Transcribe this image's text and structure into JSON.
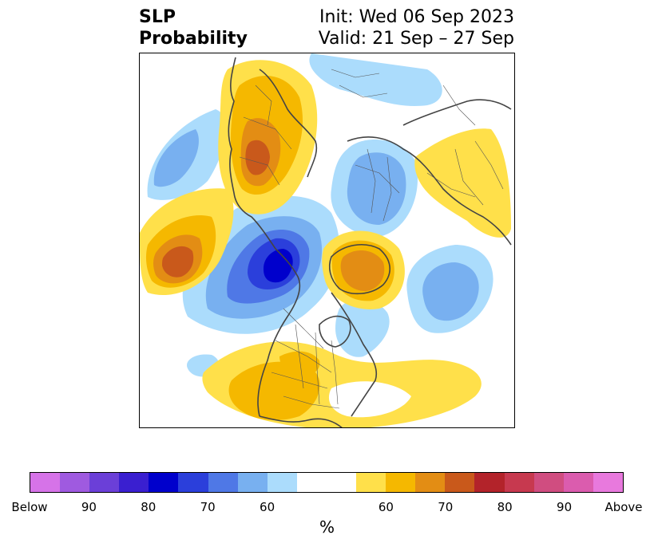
{
  "title": {
    "left_line1": "SLP",
    "left_line2": "Probability",
    "right_line1": "Init: Wed 06 Sep 2023",
    "right_line2": "Valid: 21 Sep – 27 Sep"
  },
  "colorbar": {
    "colors": [
      "#d673e8",
      "#9f5ae0",
      "#6b3fd8",
      "#3a1fd0",
      "#0000cc",
      "#2b3fdb",
      "#4f78e6",
      "#78b0f0",
      "#abdcfc",
      "#ffffff",
      "#ffffff",
      "#ffe04a",
      "#f5b800",
      "#e38d14",
      "#c9591b",
      "#b3232a",
      "#c7394f",
      "#d04d80",
      "#db5cae",
      "#e879dd"
    ],
    "labels": [
      "Below",
      "90",
      "80",
      "70",
      "60",
      "60",
      "70",
      "80",
      "90",
      "Above"
    ],
    "unit": "%"
  },
  "map": {
    "anomaly_colors": {
      "blue_60": "#abdcfc",
      "blue_70": "#78b0f0",
      "blue_80": "#4f78e6",
      "blue_90": "#2b3fdb",
      "blue_95": "#0000cc",
      "yellow_60": "#ffe04a",
      "orange_70": "#f5b800",
      "orange_80": "#e38d14",
      "red_90": "#c9591b"
    },
    "coastline_color": "#444444"
  }
}
